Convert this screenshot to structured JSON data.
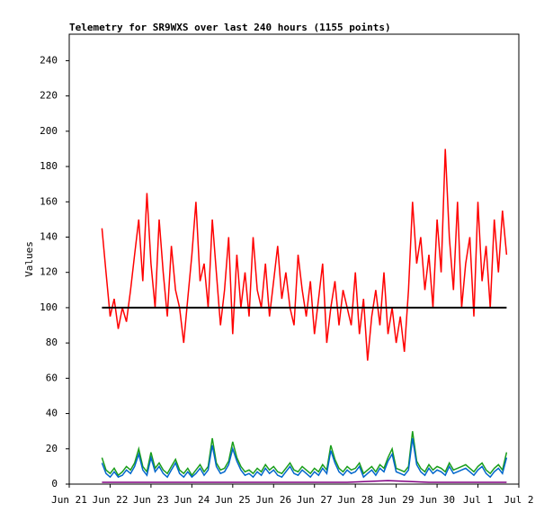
{
  "chart_data": {
    "type": "line",
    "title": "Telemetry for SR9WXS over last 240 hours (1155 points)",
    "y_label": "Values",
    "xlim": [
      0,
      11
    ],
    "ylim": [
      0,
      255
    ],
    "xticks": [
      {
        "value": 0,
        "label": "Jun 21"
      },
      {
        "value": 1,
        "label": "Jun 22"
      },
      {
        "value": 2,
        "label": "Jun 23"
      },
      {
        "value": 3,
        "label": "Jun 24"
      },
      {
        "value": 4,
        "label": "Jun 25"
      },
      {
        "value": 5,
        "label": "Jun 26"
      },
      {
        "value": 6,
        "label": "Jun 27"
      },
      {
        "value": 7,
        "label": "Jun 28"
      },
      {
        "value": 8,
        "label": "Jun 29"
      },
      {
        "value": 9,
        "label": "Jun 30"
      },
      {
        "value": 10,
        "label": "Jul 1"
      },
      {
        "value": 11,
        "label": "Jul 2"
      }
    ],
    "yticks": [
      0,
      20,
      40,
      60,
      80,
      100,
      120,
      140,
      160,
      180,
      200,
      220,
      240
    ],
    "series": [
      {
        "color": "#ff0000",
        "x": [
          0.8,
          0.9,
          1.0,
          1.1,
          1.2,
          1.3,
          1.4,
          1.5,
          1.6,
          1.7,
          1.8,
          1.9,
          2.0,
          2.1,
          2.2,
          2.3,
          2.4,
          2.5,
          2.6,
          2.7,
          2.8,
          2.9,
          3.0,
          3.1,
          3.2,
          3.3,
          3.4,
          3.5,
          3.6,
          3.7,
          3.8,
          3.9,
          4.0,
          4.1,
          4.2,
          4.3,
          4.4,
          4.5,
          4.6,
          4.7,
          4.8,
          4.9,
          5.0,
          5.1,
          5.2,
          5.3,
          5.4,
          5.5,
          5.6,
          5.7,
          5.8,
          5.9,
          6.0,
          6.1,
          6.2,
          6.3,
          6.4,
          6.5,
          6.6,
          6.7,
          6.8,
          6.9,
          7.0,
          7.1,
          7.2,
          7.3,
          7.4,
          7.5,
          7.6,
          7.7,
          7.8,
          7.9,
          8.0,
          8.1,
          8.2,
          8.3,
          8.4,
          8.5,
          8.6,
          8.7,
          8.8,
          8.9,
          9.0,
          9.1,
          9.2,
          9.3,
          9.4,
          9.5,
          9.6,
          9.7,
          9.8,
          9.9,
          10.0,
          10.1,
          10.2,
          10.3,
          10.4,
          10.5,
          10.6,
          10.7
        ],
        "values": [
          145,
          120,
          95,
          105,
          88,
          100,
          92,
          110,
          130,
          150,
          115,
          165,
          125,
          100,
          150,
          120,
          95,
          135,
          110,
          100,
          80,
          105,
          130,
          160,
          115,
          125,
          100,
          150,
          120,
          90,
          110,
          140,
          85,
          130,
          100,
          120,
          95,
          140,
          110,
          100,
          125,
          95,
          115,
          135,
          105,
          120,
          100,
          90,
          130,
          110,
          95,
          115,
          85,
          105,
          125,
          80,
          100,
          115,
          90,
          110,
          100,
          90,
          120,
          85,
          105,
          70,
          95,
          110,
          90,
          120,
          85,
          100,
          80,
          95,
          75,
          110,
          160,
          125,
          140,
          110,
          130,
          100,
          150,
          120,
          190,
          140,
          110,
          160,
          100,
          125,
          140,
          95,
          160,
          115,
          135,
          100,
          150,
          120,
          155,
          130
        ]
      },
      {
        "color": "#1a9e1a",
        "x": [
          0.8,
          0.9,
          1.0,
          1.1,
          1.2,
          1.3,
          1.4,
          1.5,
          1.6,
          1.7,
          1.8,
          1.9,
          2.0,
          2.1,
          2.2,
          2.3,
          2.4,
          2.5,
          2.6,
          2.7,
          2.8,
          2.9,
          3.0,
          3.1,
          3.2,
          3.3,
          3.4,
          3.5,
          3.6,
          3.7,
          3.8,
          3.9,
          4.0,
          4.1,
          4.2,
          4.3,
          4.4,
          4.5,
          4.6,
          4.7,
          4.8,
          4.9,
          5.0,
          5.1,
          5.2,
          5.3,
          5.4,
          5.5,
          5.6,
          5.7,
          5.8,
          5.9,
          6.0,
          6.1,
          6.2,
          6.3,
          6.4,
          6.5,
          6.6,
          6.7,
          6.8,
          6.9,
          7.0,
          7.1,
          7.2,
          7.3,
          7.4,
          7.5,
          7.6,
          7.7,
          7.8,
          7.9,
          8.0,
          8.1,
          8.2,
          8.3,
          8.4,
          8.5,
          8.6,
          8.7,
          8.8,
          8.9,
          9.0,
          9.1,
          9.2,
          9.3,
          9.4,
          9.5,
          9.6,
          9.7,
          9.8,
          9.9,
          10.0,
          10.1,
          10.2,
          10.3,
          10.4,
          10.5,
          10.6,
          10.7
        ],
        "values": [
          15,
          8,
          6,
          9,
          5,
          7,
          10,
          8,
          12,
          20,
          10,
          7,
          18,
          9,
          12,
          8,
          6,
          10,
          14,
          8,
          6,
          9,
          5,
          8,
          11,
          7,
          10,
          26,
          12,
          8,
          9,
          13,
          24,
          15,
          10,
          7,
          8,
          6,
          9,
          7,
          11,
          8,
          10,
          7,
          6,
          9,
          12,
          8,
          7,
          10,
          8,
          6,
          9,
          7,
          11,
          8,
          22,
          14,
          9,
          7,
          10,
          8,
          9,
          12,
          6,
          8,
          10,
          7,
          11,
          9,
          15,
          20,
          9,
          8,
          7,
          10,
          30,
          13,
          9,
          7,
          11,
          8,
          10,
          9,
          7,
          12,
          8,
          9,
          10,
          11,
          9,
          7,
          10,
          12,
          8,
          6,
          9,
          11,
          8,
          18
        ]
      },
      {
        "color": "#0066cc",
        "x": [
          0.8,
          0.9,
          1.0,
          1.1,
          1.2,
          1.3,
          1.4,
          1.5,
          1.6,
          1.7,
          1.8,
          1.9,
          2.0,
          2.1,
          2.2,
          2.3,
          2.4,
          2.5,
          2.6,
          2.7,
          2.8,
          2.9,
          3.0,
          3.1,
          3.2,
          3.3,
          3.4,
          3.5,
          3.6,
          3.7,
          3.8,
          3.9,
          4.0,
          4.1,
          4.2,
          4.3,
          4.4,
          4.5,
          4.6,
          4.7,
          4.8,
          4.9,
          5.0,
          5.1,
          5.2,
          5.3,
          5.4,
          5.5,
          5.6,
          5.7,
          5.8,
          5.9,
          6.0,
          6.1,
          6.2,
          6.3,
          6.4,
          6.5,
          6.6,
          6.7,
          6.8,
          6.9,
          7.0,
          7.1,
          7.2,
          7.3,
          7.4,
          7.5,
          7.6,
          7.7,
          7.8,
          7.9,
          8.0,
          8.1,
          8.2,
          8.3,
          8.4,
          8.5,
          8.6,
          8.7,
          8.8,
          8.9,
          9.0,
          9.1,
          9.2,
          9.3,
          9.4,
          9.5,
          9.6,
          9.7,
          9.8,
          9.9,
          10.0,
          10.1,
          10.2,
          10.3,
          10.4,
          10.5,
          10.6,
          10.7
        ],
        "values": [
          12,
          6,
          4,
          7,
          4,
          5,
          8,
          6,
          10,
          17,
          8,
          5,
          15,
          7,
          10,
          6,
          4,
          8,
          12,
          6,
          4,
          7,
          4,
          6,
          9,
          5,
          8,
          22,
          10,
          6,
          7,
          11,
          20,
          13,
          8,
          5,
          6,
          4,
          7,
          5,
          9,
          6,
          8,
          5,
          4,
          7,
          10,
          6,
          5,
          8,
          6,
          4,
          7,
          5,
          9,
          6,
          19,
          12,
          7,
          5,
          8,
          6,
          7,
          10,
          4,
          6,
          8,
          5,
          9,
          7,
          13,
          17,
          7,
          6,
          5,
          8,
          26,
          11,
          7,
          5,
          9,
          6,
          8,
          7,
          5,
          10,
          6,
          7,
          8,
          9,
          7,
          5,
          8,
          10,
          6,
          4,
          7,
          9,
          6,
          15
        ]
      },
      {
        "color": "#800080",
        "x": [
          0.8,
          1.8,
          2.8,
          3.8,
          4.8,
          5.8,
          6.8,
          7.8,
          8.8,
          9.8,
          10.7
        ],
        "values": [
          1,
          1,
          1,
          1,
          1,
          1,
          1,
          2,
          1,
          1,
          1
        ]
      },
      {
        "color": "#000000",
        "x": [
          0.8,
          10.7
        ],
        "values": [
          100,
          100
        ]
      }
    ]
  }
}
